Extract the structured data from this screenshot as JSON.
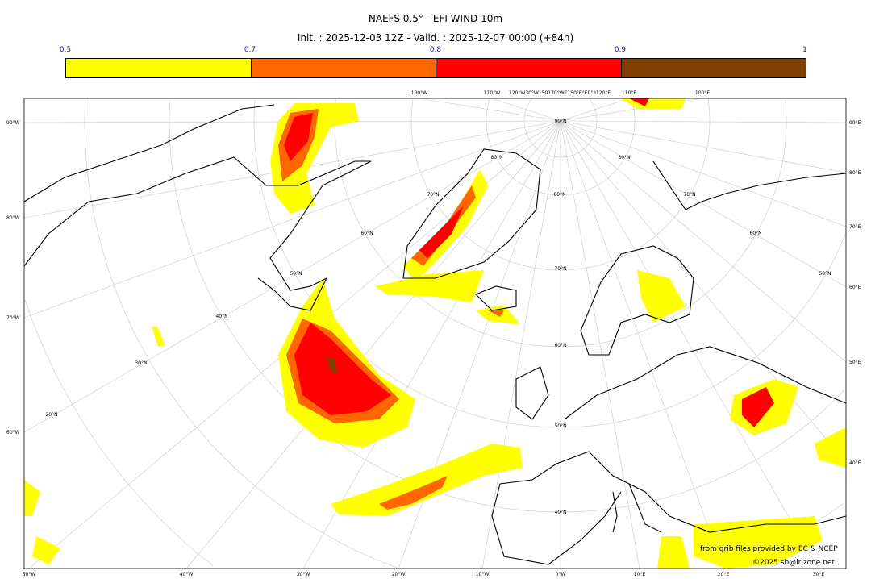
{
  "title": "NAEFS 0.5° - EFI WIND 10m",
  "subtitle": "Init. : 2025-12-03 12Z - Valid. : 2025-12-07 00:00 (+84h)",
  "colorbar": {
    "ticks": [
      "0.5",
      "0.7",
      "0.8",
      "0.9",
      "1"
    ],
    "bins": [
      {
        "from": 0.5,
        "to": 0.7,
        "color": "#ffff00"
      },
      {
        "from": 0.7,
        "to": 0.8,
        "color": "#ff6600"
      },
      {
        "from": 0.8,
        "to": 0.9,
        "color": "#ff0000"
      },
      {
        "from": 0.9,
        "to": 1.0,
        "color": "#7f3f00"
      }
    ]
  },
  "axes": {
    "left": [
      "90°W",
      "80°W",
      "70°W",
      "60°W"
    ],
    "right": [
      "90°E",
      "80°E",
      "70°E",
      "60°E",
      "50°E",
      "40°E"
    ],
    "bottom": [
      "50°W",
      "40°W",
      "30°W",
      "20°W",
      "10°W",
      "0°W",
      "10°E",
      "20°E",
      "30°E"
    ],
    "top": [
      "100°W",
      "110°W",
      "120°W30°W150170°W€150°E°E0°II120°E",
      "110°E",
      "100°E"
    ],
    "latitudes": [
      "90°N",
      "80°N",
      "80°N",
      "80°N",
      "70°N",
      "70°N",
      "70°N",
      "60°N",
      "60°N",
      "60°N",
      "50°N",
      "50°N",
      "50°N",
      "40°N",
      "40°N",
      "30°N",
      "20°N"
    ]
  },
  "credits": {
    "source": "from grib files provided by EC & NCEP",
    "copyright": "©2025 sb@irizone.net"
  }
}
